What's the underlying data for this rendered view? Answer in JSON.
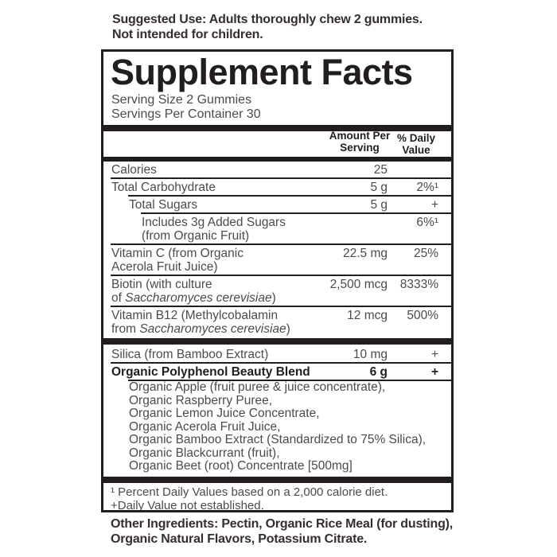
{
  "colors": {
    "ink": "#221e1f",
    "text": "#4b4b4d",
    "note": "#352d2f"
  },
  "top_note": {
    "text": "Suggested Use: Adults thoroughly chew 2 gummies.\nNot intended for children."
  },
  "panel": {
    "title": "Supplement Facts",
    "serving_size": "Serving Size 2 Gummies",
    "servings_per_container": "Servings Per Container 30",
    "amount_header": "Amount Per\nServing",
    "daily_value_header": "% Daily\nValue",
    "rows": [
      {
        "sep": "none",
        "indent": 0,
        "bold": false,
        "name_lines": [
          "Calories"
        ],
        "amount": "25",
        "dv": ""
      },
      {
        "sep": "thin",
        "indent": 0,
        "bold": false,
        "name_lines": [
          "Total Carbohydrate"
        ],
        "amount": "5 g",
        "dv": "2%¹"
      },
      {
        "sep": "thin",
        "indent": 1,
        "bold": false,
        "name_lines": [
          "Total Sugars"
        ],
        "amount": "5 g",
        "dv": "+"
      },
      {
        "sep": "thin",
        "indent": 2,
        "bold": false,
        "name_lines": [
          "Includes 3g Added Sugars",
          "(from Organic Fruit)"
        ],
        "amount": "",
        "dv": "6%¹"
      },
      {
        "sep": "thin",
        "indent": 0,
        "bold": false,
        "name_lines": [
          "Vitamin C (from Organic",
          "Acerola Fruit Juice)"
        ],
        "amount": "22.5 mg",
        "dv": "25%"
      },
      {
        "sep": "thin",
        "indent": 0,
        "bold": false,
        "name_lines": [
          "Biotin (with culture",
          "of *Saccharomyces cerevisiae*)"
        ],
        "amount": "2,500 mcg",
        "dv": "8333%"
      },
      {
        "sep": "thin",
        "indent": 0,
        "bold": false,
        "name_lines": [
          "Vitamin B12 (Methylcobalamin",
          "from *Saccharomyces cerevisiae*)"
        ],
        "amount": "12 mcg",
        "dv": "500%"
      },
      {
        "sep": "bar",
        "indent": 0,
        "bold": false,
        "name_lines": [
          "Silica (from Bamboo Extract)"
        ],
        "amount": "10 mg",
        "dv": "+"
      },
      {
        "sep": "thin",
        "indent": 0,
        "bold": true,
        "name_lines": [
          "Organic Polyphenol Beauty Blend"
        ],
        "amount": "6 g",
        "dv": "+"
      }
    ],
    "blend_ingredients": [
      "Organic Apple (fruit puree & juice concentrate),",
      "Organic Raspberry Puree,",
      "Organic Lemon Juice Concentrate,",
      "Organic Acerola Fruit Juice,",
      "Organic Bamboo Extract (Standardized to 75% Silica),",
      "Organic Blackcurrant (fruit),",
      "Organic Beet (root) Concentrate [500mg]"
    ],
    "footnotes": "¹ Percent Daily Values based on a 2,000 calorie diet.\n+Daily Value not established."
  },
  "bottom_note": {
    "text": "Other Ingredients: Pectin, Organic Rice Meal (for dusting),\nOrganic Natural Flavors, Potassium Citrate."
  }
}
